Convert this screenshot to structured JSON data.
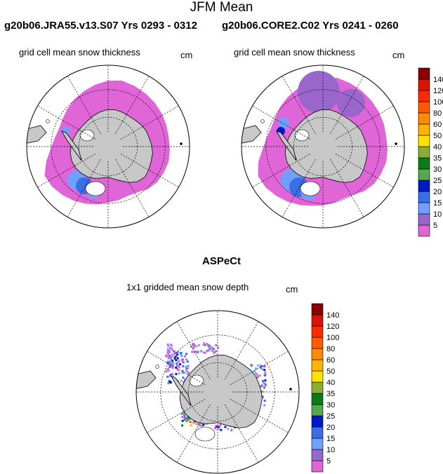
{
  "figure": {
    "title": "JFM Mean",
    "panel_a_header": "g20b06.JRA55.v13.S07  Yrs 0293 - 0312",
    "panel_b_header": "g20b06.CORE2.C02  Yrs 0241 - 0260",
    "aspect_header": "ASPeCt"
  },
  "colors": {
    "land": "#c8c8c8",
    "bins": [
      "#e066d8",
      "#9966cc",
      "#6fa0ff",
      "#3a6ee6",
      "#0018c8",
      "#56a84e",
      "#0a7a1a",
      "#88b030",
      "#ffe200",
      "#ffb400",
      "#ff8c00",
      "#ff5a00",
      "#ff2a00",
      "#d81400",
      "#8a0000"
    ]
  },
  "chart_data": [
    {
      "type": "heatmap",
      "projection": "south-polar-stereographic",
      "title": "grid cell mean snow thickness",
      "units": "cm",
      "colorbar_ticks": [
        "140",
        "120",
        "100",
        "80",
        "60",
        "50",
        "40",
        "35",
        "30",
        "25",
        "20",
        "15",
        "10",
        "5"
      ],
      "dominant_range_cm": [
        0,
        15
      ]
    },
    {
      "type": "heatmap",
      "projection": "south-polar-stereographic",
      "title": "grid cell mean snow thickness",
      "units": "cm",
      "colorbar_ticks": [
        "140",
        "120",
        "100",
        "80",
        "60",
        "50",
        "40",
        "35",
        "30",
        "25",
        "20",
        "15",
        "10",
        "5"
      ],
      "dominant_range_cm": [
        0,
        20
      ]
    },
    {
      "type": "heatmap",
      "projection": "south-polar-stereographic",
      "title": "1x1 gridded mean snow depth",
      "units": "cm",
      "colorbar_ticks": [
        "140",
        "120",
        "100",
        "80",
        "60",
        "50",
        "40",
        "35",
        "30",
        "25",
        "20",
        "15",
        "10",
        "5"
      ],
      "dominant_range_cm": [
        0,
        50
      ]
    }
  ]
}
